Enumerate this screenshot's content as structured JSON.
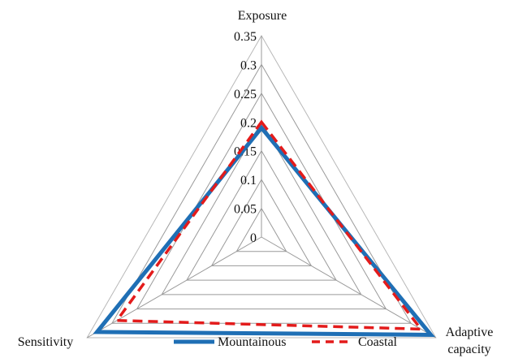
{
  "chart_data": {
    "type": "radar",
    "axes": [
      "Exposure",
      "Adaptive capacity",
      "Sensitivity"
    ],
    "axis_labels": {
      "top": "Exposure",
      "right_line1": "Adaptive",
      "right_line2": "capacity",
      "left": "Sensitivity"
    },
    "rlim": [
      0,
      0.35
    ],
    "ticks": [
      0,
      0.05,
      0.1,
      0.15,
      0.2,
      0.25,
      0.3,
      0.35
    ],
    "tick_labels": [
      "0",
      "0.05",
      "0.1",
      "0.15",
      "0.2",
      "0.25",
      "0.3",
      "0.35"
    ],
    "grid": true,
    "legend": {
      "position": "bottom",
      "entries": [
        "Mountainous",
        "Coastal"
      ]
    },
    "series": [
      {
        "name": "Mountainous",
        "values": [
          0.19,
          0.34,
          0.33
        ],
        "color": "#1f6fb5",
        "style": "solid"
      },
      {
        "name": "Coastal",
        "values": [
          0.2,
          0.32,
          0.29
        ],
        "color": "#e31b1b",
        "style": "dashed"
      }
    ]
  }
}
